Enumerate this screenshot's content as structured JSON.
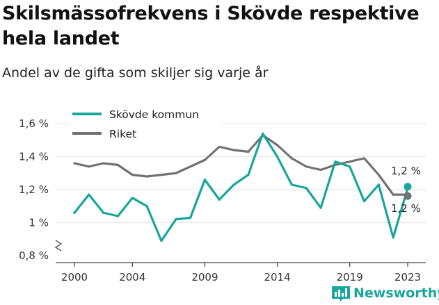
{
  "title": "Skilsmässofrekvens i Skövde respektive hela landet",
  "subtitle": "Andel av de gifta som skiljer sig varje år",
  "colors": {
    "skovde": "#17a69a",
    "riket": "#717171",
    "grid": "#e3e3e3",
    "brand": "#1aa79b"
  },
  "brand": {
    "name": "Newsworthy",
    "icon": "bar-chart-logo-icon"
  },
  "chart_data": {
    "type": "line",
    "x": [
      2000,
      2001,
      2002,
      2003,
      2004,
      2005,
      2006,
      2007,
      2008,
      2009,
      2010,
      2011,
      2012,
      2013,
      2014,
      2015,
      2016,
      2017,
      2018,
      2019,
      2020,
      2021,
      2022,
      2023
    ],
    "series": [
      {
        "name": "Skövde kommun",
        "color": "#17a69a",
        "values": [
          1.06,
          1.17,
          1.06,
          1.04,
          1.15,
          1.1,
          0.89,
          1.02,
          1.03,
          1.26,
          1.14,
          1.23,
          1.29,
          1.54,
          1.4,
          1.23,
          1.21,
          1.09,
          1.37,
          1.34,
          1.13,
          1.23,
          0.91,
          1.21
        ]
      },
      {
        "name": "Riket",
        "color": "#717171",
        "values": [
          1.36,
          1.34,
          1.36,
          1.35,
          1.29,
          1.28,
          1.29,
          1.3,
          1.34,
          1.38,
          1.46,
          1.44,
          1.43,
          1.53,
          1.47,
          1.39,
          1.34,
          1.32,
          1.35,
          1.37,
          1.39,
          1.29,
          1.17,
          1.17
        ]
      }
    ],
    "x_ticks": [
      2000,
      2004,
      2009,
      2014,
      2019,
      2023
    ],
    "x_tick_labels": [
      "2000",
      "2004",
      "2009",
      "2014",
      "2019",
      "2023"
    ],
    "y_ticks": [
      0.8,
      1.0,
      1.2,
      1.4,
      1.6
    ],
    "y_tick_labels": [
      "0,8 %",
      "1 %",
      "1,2 %",
      "1,4 %",
      "1,6 %"
    ],
    "ylim": [
      0.8,
      1.65
    ],
    "xlim": [
      2000,
      2023
    ],
    "axis_break": true,
    "grid": true,
    "legend": "top-left",
    "end_labels": [
      "1,2 %",
      "1,2 %"
    ],
    "xlabel": "",
    "ylabel": ""
  }
}
